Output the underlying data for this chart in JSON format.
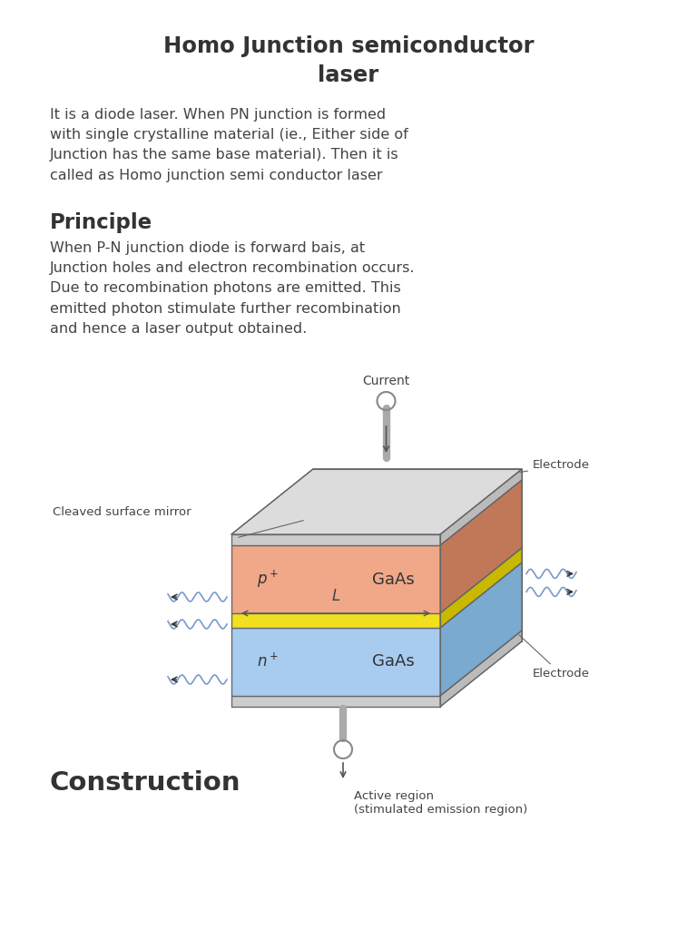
{
  "title": "Homo Junction semiconductor\nlaser",
  "body_text1": "It is a diode laser. When PN junction is formed\nwith single crystalline material (ie., Either side of\nJunction has the same base material). Then it is\ncalled as Homo junction semi conductor laser",
  "principle_heading": "Principle",
  "principle_text": "When P-N junction diode is forward bais, at\nJunction holes and electron recombination occurs.\nDue to recombination photons are emitted. This\nemitted photon stimulate further recombination\nand hence a laser output obtained.",
  "construction_heading": "Construction",
  "bg_color": "#ffffff",
  "text_color": "#444444",
  "heading_color": "#333333",
  "p_layer_color": "#f0a888",
  "n_layer_color": "#a8ccf0",
  "active_layer_color": "#f0e020",
  "electrode_color": "#d0d0d0",
  "outline_color": "#555555"
}
